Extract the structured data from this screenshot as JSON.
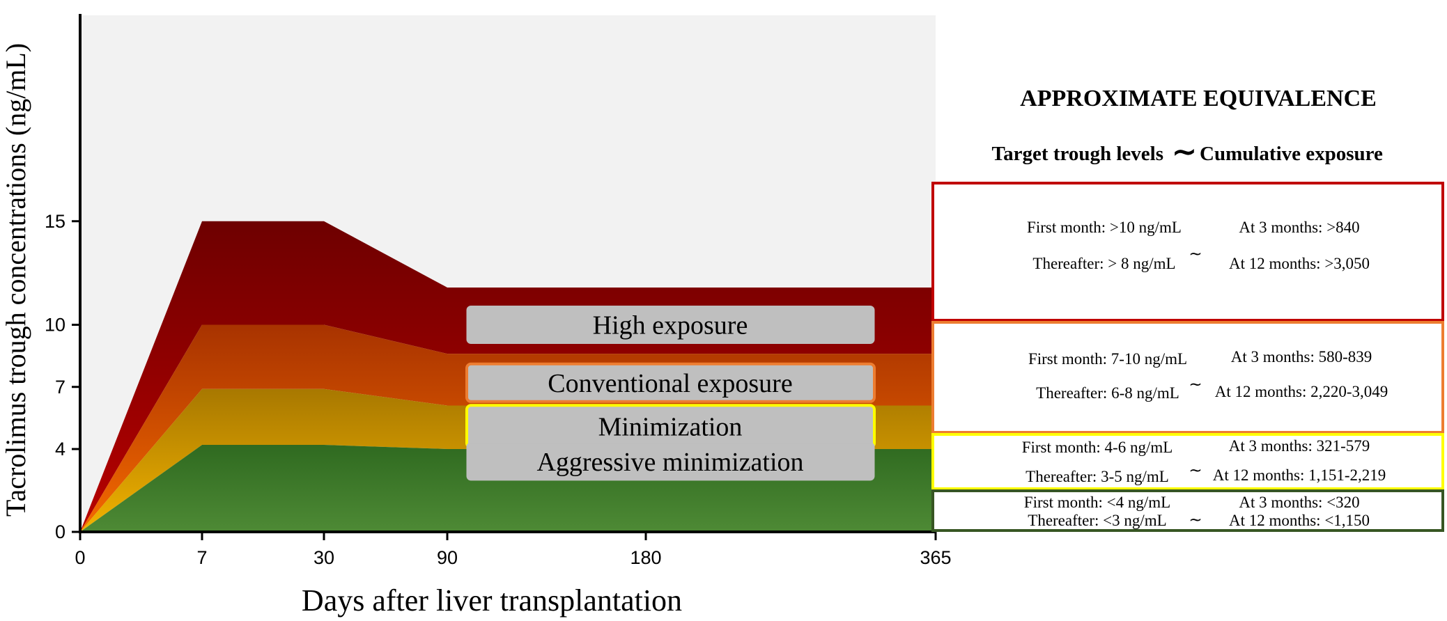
{
  "chart_data": {
    "type": "area",
    "xlabel": "Days after liver transplantation",
    "ylabel": "Tacrolimus trough concentrations (ng/mL)",
    "x_ticks": [
      "0",
      "7",
      "30",
      "90",
      "180",
      "365"
    ],
    "y_ticks": [
      "0",
      "4",
      "7",
      "10",
      "15"
    ],
    "ylim": [
      0,
      15.5
    ],
    "x": [
      0,
      7,
      30,
      90,
      365
    ],
    "series": [
      {
        "name": "High exposure",
        "upper": [
          0,
          15,
          15,
          11.8,
          11.8
        ],
        "lower": [
          0,
          10,
          10,
          8.6,
          8.6
        ],
        "color_top": "#6e0000",
        "color_bottom": "#b80000"
      },
      {
        "name": "Conventional exposure",
        "upper": [
          0,
          10,
          10,
          8.6,
          8.6
        ],
        "lower": [
          0,
          6.9,
          6.9,
          6.1,
          6.1
        ],
        "color_top": "#a83300",
        "color_bottom": "#f56a00"
      },
      {
        "name": "Minimization",
        "upper": [
          0,
          6.9,
          6.9,
          6.1,
          6.1
        ],
        "lower": [
          0,
          4.2,
          4.2,
          4.0,
          4.0
        ],
        "color_top": "#a87800",
        "color_bottom": "#f2b300"
      },
      {
        "name": "Aggressive minimization",
        "upper": [
          0,
          4.2,
          4.2,
          4.0,
          4.0
        ],
        "lower": [
          0,
          0,
          0,
          0,
          0
        ],
        "color_top": "#2f6a20",
        "color_bottom": "#4e8a35"
      }
    ],
    "band_label_y": [
      10,
      7.2,
      5.1,
      3.4
    ],
    "background_color": "#f2f2f2"
  },
  "panel": {
    "title": "APPROXIMATE EQUIVALENCE",
    "header_left": "Target trough levels",
    "header_tilde": "∼",
    "header_right": "Cumulative exposure",
    "boxes": [
      {
        "border_color": "#c00000",
        "first_month": "First month: >10 ng/mL",
        "thereafter": "Thereafter: > 8 ng/mL",
        "tilde": "∼",
        "at3": "At 3 months: >840",
        "at12": "At 12 months: >3,050"
      },
      {
        "border_color": "#ed7d31",
        "first_month": "First month: 7-10 ng/mL",
        "thereafter": "Thereafter: 6-8 ng/mL",
        "tilde": "∼",
        "at3": "At 3 months: 580-839",
        "at12": "At 12 months: 2,220-3,049"
      },
      {
        "border_color": "#ffff00",
        "first_month": "First month: 4-6 ng/mL",
        "thereafter": "Thereafter: 3-5 ng/mL",
        "tilde": "∼",
        "at3": "At 3 months: 321-579",
        "at12": "At 12 months: 1,151-2,219"
      },
      {
        "border_color": "#375623",
        "first_month": "First month: <4 ng/mL",
        "thereafter": "Thereafter: <3 ng/mL",
        "tilde": "∼",
        "at3": "At 3 months: <320",
        "at12": "At 12 months: <1,150"
      }
    ]
  }
}
